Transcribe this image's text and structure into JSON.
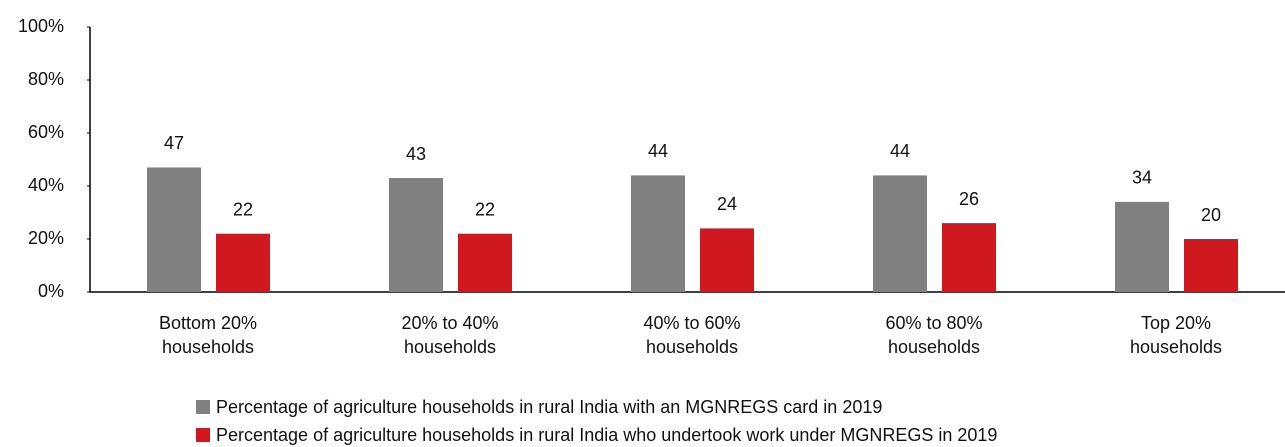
{
  "chart_data": {
    "type": "bar",
    "categories": [
      "Bottom 20% households",
      "20% to 40% households",
      "40% to 60% households",
      "60% to 80% households",
      "Top 20% households"
    ],
    "series": [
      {
        "name": "Percentage of agriculture households in rural India with an MGNREGS card in 2019",
        "color": "#808080",
        "values": [
          47,
          43,
          44,
          44,
          34
        ]
      },
      {
        "name": "Percentage of agriculture households in rural India who undertook work under MGNREGS in 2019",
        "color": "#d0191f",
        "values": [
          22,
          22,
          24,
          26,
          20
        ]
      }
    ],
    "ylim": [
      0,
      100
    ],
    "yticks": [
      {
        "value": 0,
        "label": "0%"
      },
      {
        "value": 20,
        "label": "20%"
      },
      {
        "value": 40,
        "label": "40%"
      },
      {
        "value": 60,
        "label": "60%"
      },
      {
        "value": 80,
        "label": "80%"
      },
      {
        "value": 100,
        "label": "100%"
      }
    ],
    "grid": false
  }
}
